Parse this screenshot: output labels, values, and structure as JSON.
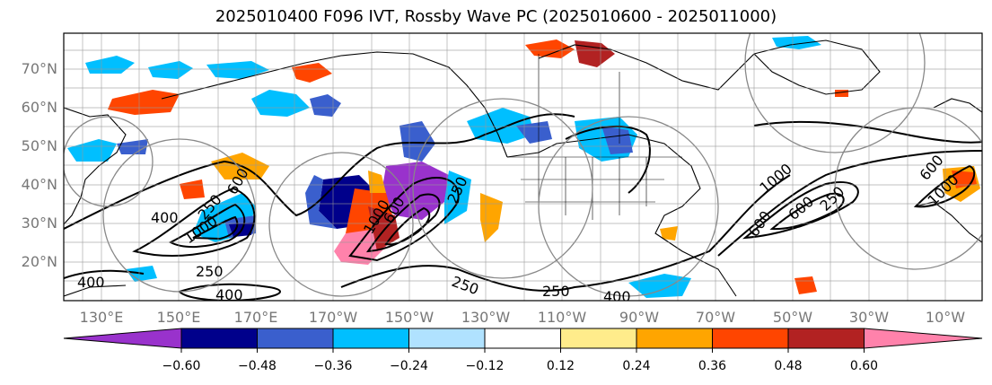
{
  "title": "2025010400 F096 IVT, Rossby Wave PC (2025010600 - 2025011000)",
  "lat_labels": [
    "70°N",
    "60°N",
    "50°N",
    "40°N",
    "30°N",
    "20°N"
  ],
  "lon_labels": [
    "130°E",
    "150°E",
    "170°E",
    "170°W",
    "150°W",
    "130°W",
    "110°W",
    "90°W",
    "70°W",
    "50°W",
    "30°W",
    "10°W"
  ],
  "ivt_contour_labels": [
    "400",
    "250",
    "400",
    "400",
    "1000",
    "250",
    "600",
    "1000",
    "250",
    "250",
    "400",
    "600",
    "250",
    "600",
    "1000",
    "600",
    "250",
    "600",
    "1000"
  ],
  "colorbar": {
    "colors": [
      "#9932cc",
      "#00008b",
      "#3a5fcd",
      "#00bfff",
      "#b0e2ff",
      "#ffffff",
      "#ffec8b",
      "#ffa500",
      "#ff4500",
      "#b22222",
      "#ff82ab"
    ],
    "tick_labels": [
      "−0.60",
      "−0.48",
      "−0.36",
      "−0.24",
      "−0.12",
      "0.12",
      "0.24",
      "0.36",
      "0.48",
      "0.60"
    ]
  }
}
